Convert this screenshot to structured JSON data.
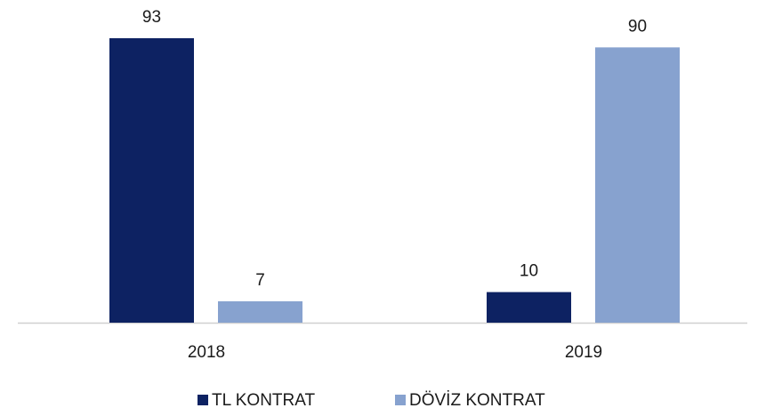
{
  "chart_data": {
    "type": "bar",
    "categories": [
      "2018",
      "2019"
    ],
    "series": [
      {
        "name": "TL KONTRAT",
        "color": "#0d2262",
        "values": [
          93,
          10
        ]
      },
      {
        "name": "DÖVİZ KONTRAT",
        "color": "#87a2cf",
        "values": [
          7,
          90
        ]
      }
    ],
    "legend": "bottom"
  }
}
